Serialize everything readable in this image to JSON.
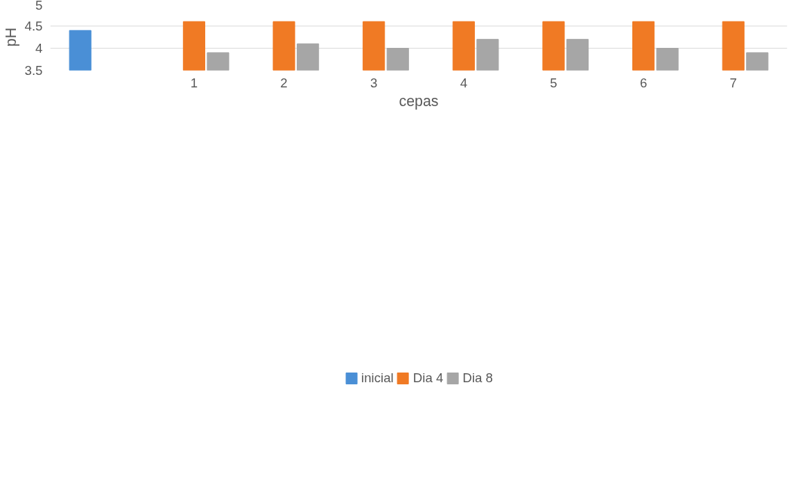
{
  "chart_data": {
    "type": "bar",
    "xlabel": "cepas",
    "ylabel": "pH",
    "categories": [
      null,
      "1",
      "2",
      "3",
      "4",
      "5",
      "6",
      "7"
    ],
    "series": [
      {
        "name": "inicial",
        "color": "#4a8fd6",
        "values": [
          4.4,
          null,
          null,
          null,
          null,
          null,
          null,
          null
        ]
      },
      {
        "name": "Dia 4",
        "color": "#f07a24",
        "values": [
          null,
          4.6,
          4.6,
          4.6,
          4.6,
          4.6,
          4.6,
          4.6
        ]
      },
      {
        "name": "Dia 8",
        "color": "#a6a6a6",
        "values": [
          null,
          3.9,
          4.1,
          4.0,
          4.2,
          4.2,
          4.0,
          3.9
        ]
      }
    ],
    "ylim": [
      3.5,
      5
    ],
    "yticks": [
      3.5,
      4,
      4.5,
      5
    ],
    "grid": "y",
    "legend": "bottom"
  }
}
